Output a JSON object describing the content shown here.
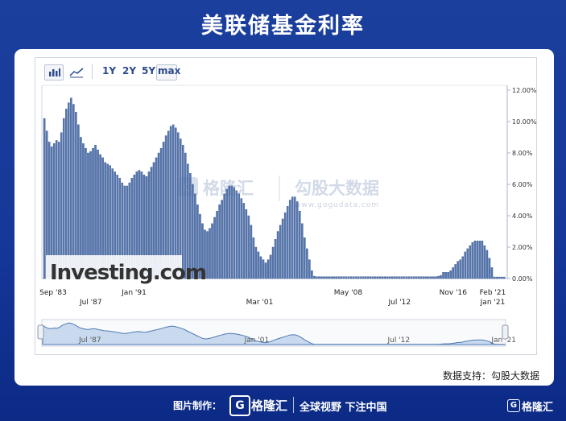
{
  "page_title": "美联储基金利率",
  "toolbar": {
    "bar_icon": "bar-chart-icon",
    "line_icon": "line-chart-icon",
    "ranges": [
      "1Y",
      "2Y",
      "5Y",
      "max"
    ],
    "active_range": "max"
  },
  "watermark": {
    "brand": "格隆汇",
    "brand2": "勾股大数据",
    "url": "www.gogudata.com"
  },
  "logo_text": "Investing.com",
  "source_text": "数据支持：勾股大数据",
  "footer": {
    "made_by": "图片制作：",
    "brand": "格隆汇",
    "slogan": "全球视野 下注中国",
    "corner_brand": "格隆汇"
  },
  "colors": {
    "bar": "#5877ad",
    "bar_edge": "#3c5c96",
    "navigator_fill": "#c9daee",
    "navigator_line": "#4f79b4"
  },
  "chart_data": {
    "type": "bar",
    "title": "",
    "xlabel": "",
    "ylabel": "",
    "ylim": [
      0,
      12
    ],
    "y_ticks": [
      "0.00%",
      "2.00%",
      "4.00%",
      "6.00%",
      "8.00%",
      "10.00%",
      "12.00%"
    ],
    "x_ticks_top": [
      "Sep '83",
      "Jan '91",
      "May '08",
      "Nov '16",
      "Feb '21"
    ],
    "x_ticks_bottom": [
      "Jul '87",
      "Mar '01",
      "Jul '12",
      "Jan '21"
    ],
    "navigator_ticks": [
      "Jul '87",
      "Jan '01",
      "Jul '12",
      "Jan '21"
    ],
    "grid": false,
    "x_start": "Sep '83",
    "x_end": "Feb '21",
    "values": [
      10.2,
      9.4,
      8.7,
      8.4,
      8.6,
      8.8,
      8.7,
      9.3,
      10.2,
      10.8,
      11.2,
      11.5,
      11.1,
      10.6,
      9.8,
      9.0,
      8.6,
      8.3,
      8.0,
      8.1,
      8.3,
      8.5,
      8.2,
      7.9,
      7.7,
      7.4,
      7.3,
      7.2,
      7.0,
      6.8,
      6.6,
      6.4,
      6.1,
      5.9,
      5.9,
      6.1,
      6.4,
      6.6,
      6.8,
      6.9,
      6.8,
      6.6,
      6.5,
      6.8,
      7.1,
      7.4,
      7.7,
      8.0,
      8.3,
      8.7,
      9.1,
      9.4,
      9.7,
      9.8,
      9.6,
      9.3,
      8.9,
      8.5,
      8.0,
      7.3,
      6.7,
      6.0,
      5.4,
      4.7,
      4.1,
      3.5,
      3.1,
      3.0,
      3.2,
      3.5,
      3.9,
      4.3,
      4.7,
      5.0,
      5.4,
      5.7,
      5.9,
      5.9,
      5.8,
      5.6,
      5.4,
      5.1,
      4.8,
      4.4,
      4.0,
      3.4,
      2.6,
      2.0,
      1.7,
      1.4,
      1.2,
      1.0,
      1.2,
      1.5,
      2.0,
      2.5,
      3.0,
      3.4,
      3.8,
      4.2,
      4.6,
      5.0,
      5.2,
      5.2,
      4.9,
      4.3,
      3.5,
      2.6,
      1.9,
      1.2,
      0.5,
      0.15,
      0.12,
      0.12,
      0.12,
      0.12,
      0.12,
      0.12,
      0.12,
      0.12,
      0.12,
      0.12,
      0.12,
      0.12,
      0.12,
      0.12,
      0.12,
      0.12,
      0.12,
      0.12,
      0.12,
      0.12,
      0.12,
      0.12,
      0.12,
      0.12,
      0.12,
      0.12,
      0.12,
      0.12,
      0.12,
      0.12,
      0.12,
      0.12,
      0.12,
      0.12,
      0.12,
      0.12,
      0.12,
      0.12,
      0.12,
      0.12,
      0.12,
      0.12,
      0.12,
      0.12,
      0.12,
      0.12,
      0.12,
      0.12,
      0.12,
      0.12,
      0.15,
      0.2,
      0.4,
      0.4,
      0.4,
      0.5,
      0.7,
      0.9,
      1.1,
      1.2,
      1.4,
      1.7,
      1.9,
      2.1,
      2.3,
      2.4,
      2.4,
      2.4,
      2.4,
      2.1,
      1.8,
      1.3,
      0.7,
      0.1,
      0.1,
      0.1,
      0.1,
      0.1
    ]
  }
}
